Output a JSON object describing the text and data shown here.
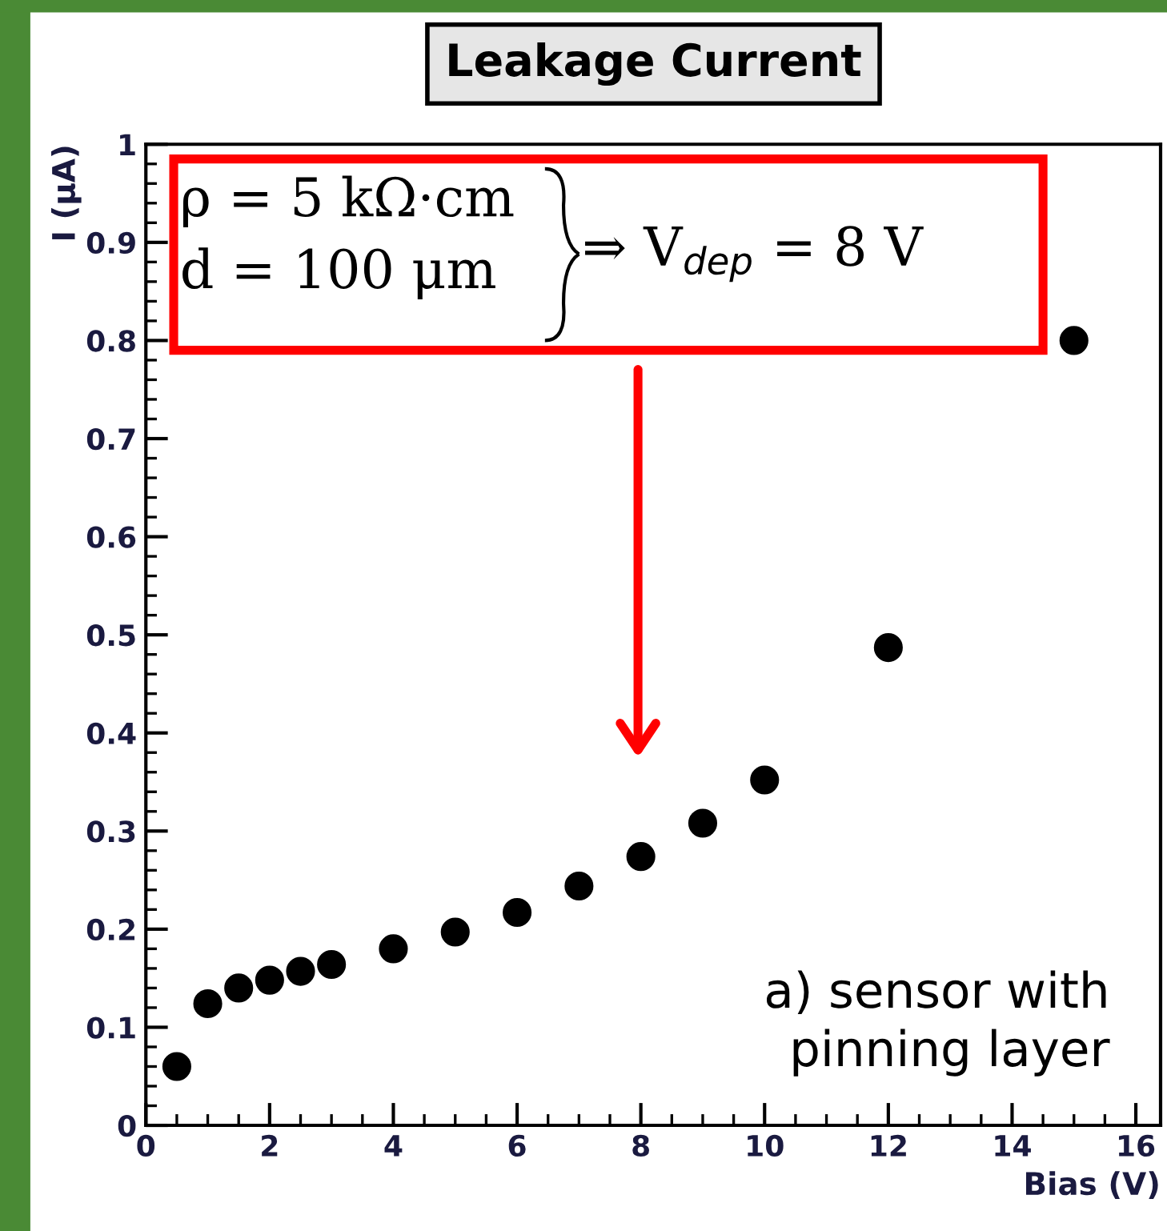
{
  "chart_data": {
    "type": "scatter",
    "title": "Leakage Current",
    "xlabel": "Bias (V)",
    "ylabel": "I (μA)",
    "x": [
      0.5,
      1,
      1.5,
      2,
      2.5,
      3,
      4,
      5,
      6,
      7,
      8,
      9,
      10,
      12,
      15
    ],
    "series": [
      {
        "color": "#000000",
        "values": [
          0.06,
          0.124,
          0.14,
          0.148,
          0.157,
          0.164,
          0.18,
          0.197,
          0.217,
          0.244,
          0.274,
          0.308,
          0.352,
          0.487,
          0.8
        ]
      }
    ],
    "marker": "circle",
    "xlim": [
      0,
      16.4
    ],
    "ylim": [
      0,
      1
    ],
    "xticks": [
      0,
      2,
      4,
      6,
      8,
      10,
      12,
      14,
      16
    ],
    "yticks": [
      0,
      0.1,
      0.2,
      0.3,
      0.4,
      0.5,
      0.6,
      0.7,
      0.8,
      0.9,
      1
    ],
    "grid": false,
    "legend": false,
    "annotations": [
      "ρ = 5 kΩ·cm\nd = 100 μm",
      "⇒ V$_{dep}$ = 8 V",
      "a) sensor with pinning layer"
    ]
  }
}
